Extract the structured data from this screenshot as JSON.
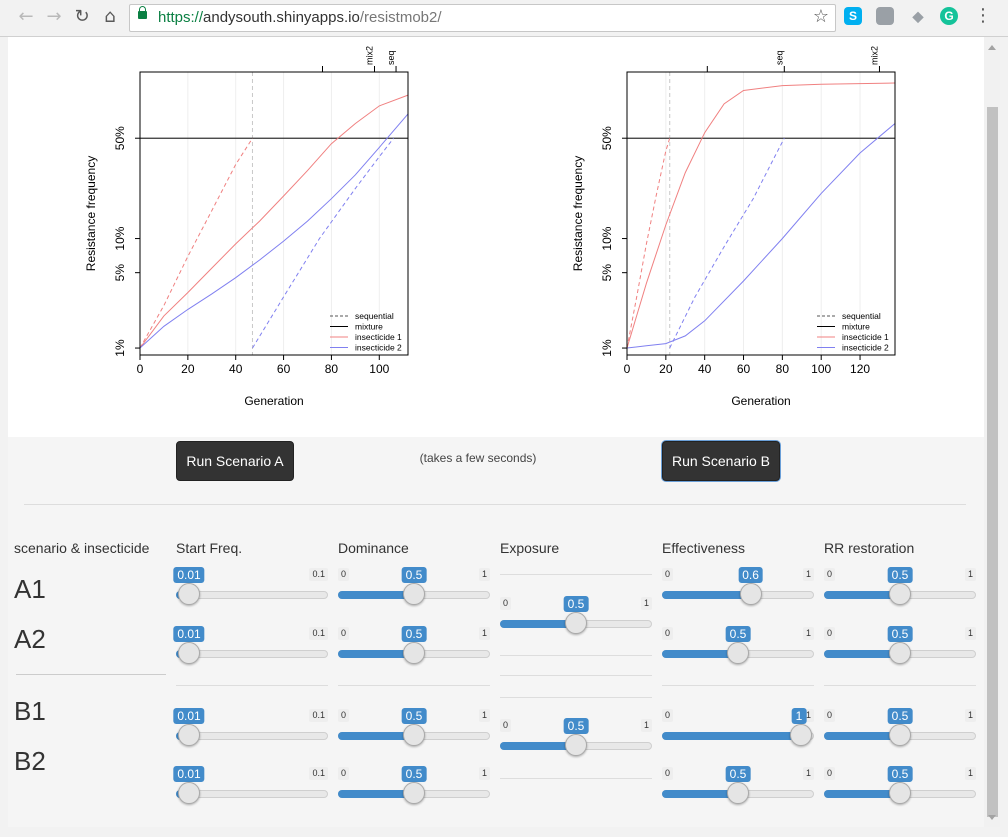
{
  "browser": {
    "url_scheme": "https://",
    "url_host": "andysouth.shinyapps.io",
    "url_path": "/resistmob2/",
    "extensions": [
      {
        "name": "skype-icon",
        "glyph": "S",
        "color": "#00aff0"
      },
      {
        "name": "image-extension-icon",
        "glyph": "",
        "color": "#9aa0a6"
      },
      {
        "name": "dropbox-icon",
        "glyph": "◆",
        "color": "#9aa0a6"
      },
      {
        "name": "grammarly-icon",
        "glyph": "G",
        "color": "#15c39a"
      }
    ]
  },
  "plots": [
    {
      "id": "a",
      "ylabel": "Resistance frequency",
      "xlabel": "Generation",
      "xticks": [
        0,
        20,
        40,
        60,
        80,
        100
      ],
      "xlim": [
        0,
        112
      ],
      "yticks": [
        "1%",
        "5%",
        "10%",
        "50%"
      ],
      "top_labels": [
        {
          "text": "mix2",
          "x": 98
        },
        {
          "text": "seq",
          "x": 107
        }
      ],
      "vline_x": 47,
      "legend": [
        "sequential",
        "mixture",
        "insecticide 1",
        "insecticide 2"
      ]
    },
    {
      "id": "b",
      "ylabel": "Resistance frequency",
      "xlabel": "Generation",
      "xticks": [
        0,
        20,
        40,
        60,
        80,
        100,
        120
      ],
      "xlim": [
        0,
        138
      ],
      "yticks": [
        "1%",
        "5%",
        "10%",
        "50%"
      ],
      "top_labels": [
        {
          "text": "seq",
          "x": 81
        },
        {
          "text": "mix2",
          "x": 130
        }
      ],
      "vline_x": 22,
      "legend": [
        "sequential",
        "mixture",
        "insecticide 1",
        "insecticide 2"
      ]
    }
  ],
  "chart_data": [
    {
      "type": "line",
      "title": "",
      "xlabel": "Generation",
      "ylabel": "Resistance frequency",
      "y_scale": "logit",
      "xlim": [
        0,
        112
      ],
      "yticks": [
        "1%",
        "5%",
        "10%",
        "50%"
      ],
      "legend_position": "bottom-right",
      "series": [
        {
          "name": "sequential",
          "color": "#f08080",
          "style": "dashed",
          "x": [
            0,
            10,
            20,
            30,
            40,
            47
          ],
          "y": [
            1,
            2.5,
            7,
            17,
            36,
            50
          ]
        },
        {
          "name": "sequential",
          "color": "#8080f0",
          "style": "dashed",
          "x": [
            47,
            60,
            75,
            90,
            100,
            106
          ],
          "y": [
            1,
            3,
            10,
            25,
            40,
            50
          ]
        },
        {
          "name": "insecticide 1",
          "color": "#f08080",
          "style": "solid",
          "x": [
            0,
            10,
            20,
            30,
            40,
            50,
            60,
            70,
            80,
            90,
            100,
            112
          ],
          "y": [
            1,
            2,
            3.3,
            5.5,
            9,
            14,
            22,
            33,
            47,
            58,
            67,
            72
          ]
        },
        {
          "name": "insecticide 2",
          "color": "#8080f0",
          "style": "solid",
          "x": [
            0,
            10,
            20,
            30,
            40,
            50,
            60,
            70,
            80,
            90,
            100,
            112
          ],
          "y": [
            1,
            1.6,
            2.3,
            3.2,
            4.5,
            6.5,
            9.5,
            14,
            21,
            31,
            45,
            63
          ]
        }
      ]
    },
    {
      "type": "line",
      "title": "",
      "xlabel": "Generation",
      "ylabel": "Resistance frequency",
      "y_scale": "logit",
      "xlim": [
        0,
        138
      ],
      "yticks": [
        "1%",
        "5%",
        "10%",
        "50%"
      ],
      "legend_position": "bottom-right",
      "series": [
        {
          "name": "sequential",
          "color": "#f08080",
          "style": "dashed",
          "x": [
            0,
            5,
            10,
            15,
            20,
            22
          ],
          "y": [
            1,
            3,
            9,
            22,
            43,
            50
          ]
        },
        {
          "name": "sequential",
          "color": "#8080f0",
          "style": "dashed",
          "x": [
            22,
            35,
            50,
            65,
            75,
            81
          ],
          "y": [
            1,
            3,
            8.5,
            21,
            38,
            50
          ]
        },
        {
          "name": "insecticide 1",
          "color": "#f08080",
          "style": "solid",
          "x": [
            0,
            10,
            20,
            30,
            40,
            50,
            60,
            80,
            100,
            138
          ],
          "y": [
            1,
            4,
            13,
            32,
            53,
            68,
            74,
            76,
            76.5,
            77
          ]
        },
        {
          "name": "insecticide 2",
          "color": "#8080f0",
          "style": "solid",
          "x": [
            0,
            10,
            20,
            30,
            40,
            60,
            80,
            100,
            120,
            138
          ],
          "y": [
            1,
            1.05,
            1.1,
            1.3,
            1.8,
            4.2,
            10,
            23,
            42,
            58
          ]
        }
      ]
    }
  ],
  "controls": {
    "run_a": "Run Scenario A",
    "run_b": "Run Scenario B",
    "note": "(takes a few seconds)",
    "headers": [
      "scenario & insecticide",
      "Start Freq.",
      "Dominance",
      "Exposure",
      "Effectiveness",
      "RR restoration"
    ],
    "row_labels": [
      "A1",
      "A2",
      "B1",
      "B2"
    ],
    "sliders": [
      {
        "name": "a1-start-freq-slider",
        "min": "0.01",
        "max": "0.1",
        "min_num": 0.01,
        "max_num": 0.1,
        "value_num": 0.01,
        "value": "0.01"
      },
      {
        "name": "a1-dominance-slider",
        "min": "0",
        "max": "1",
        "min_num": 0,
        "max_num": 1,
        "value_num": 0.5,
        "value": "0.5"
      },
      {
        "name": "a1-effectiveness-slider",
        "min": "0",
        "max": "1",
        "min_num": 0,
        "max_num": 1,
        "value_num": 0.6,
        "value": "0.6"
      },
      {
        "name": "a1-rr-restoration-slider",
        "min": "0",
        "max": "1",
        "min_num": 0,
        "max_num": 1,
        "value_num": 0.5,
        "value": "0.5"
      },
      {
        "name": "a-exposure-slider",
        "min": "0",
        "max": "1",
        "min_num": 0,
        "max_num": 1,
        "value_num": 0.5,
        "value": "0.5"
      },
      {
        "name": "a2-start-freq-slider",
        "min": "0.01",
        "max": "0.1",
        "min_num": 0.01,
        "max_num": 0.1,
        "value_num": 0.01,
        "value": "0.01"
      },
      {
        "name": "a2-dominance-slider",
        "min": "0",
        "max": "1",
        "min_num": 0,
        "max_num": 1,
        "value_num": 0.5,
        "value": "0.5"
      },
      {
        "name": "a2-effectiveness-slider",
        "min": "0",
        "max": "1",
        "min_num": 0,
        "max_num": 1,
        "value_num": 0.5,
        "value": "0.5"
      },
      {
        "name": "a2-rr-restoration-slider",
        "min": "0",
        "max": "1",
        "min_num": 0,
        "max_num": 1,
        "value_num": 0.5,
        "value": "0.5"
      },
      {
        "name": "b1-start-freq-slider",
        "min": "0.01",
        "max": "0.1",
        "min_num": 0.01,
        "max_num": 0.1,
        "value_num": 0.01,
        "value": "0.01"
      },
      {
        "name": "b1-dominance-slider",
        "min": "0",
        "max": "1",
        "min_num": 0,
        "max_num": 1,
        "value_num": 0.5,
        "value": "0.5"
      },
      {
        "name": "b1-effectiveness-slider",
        "min": "0",
        "max": "1",
        "min_num": 0,
        "max_num": 1,
        "value_num": 1,
        "value": "1"
      },
      {
        "name": "b1-rr-restoration-slider",
        "min": "0",
        "max": "1",
        "min_num": 0,
        "max_num": 1,
        "value_num": 0.5,
        "value": "0.5"
      },
      {
        "name": "b-exposure-slider",
        "min": "0",
        "max": "1",
        "min_num": 0,
        "max_num": 1,
        "value_num": 0.5,
        "value": "0.5"
      },
      {
        "name": "b2-start-freq-slider",
        "min": "0.01",
        "max": "0.1",
        "min_num": 0.01,
        "max_num": 0.1,
        "value_num": 0.01,
        "value": "0.01"
      },
      {
        "name": "b2-dominance-slider",
        "min": "0",
        "max": "1",
        "min_num": 0,
        "max_num": 1,
        "value_num": 0.5,
        "value": "0.5"
      },
      {
        "name": "b2-effectiveness-slider",
        "min": "0",
        "max": "1",
        "min_num": 0,
        "max_num": 1,
        "value_num": 0.5,
        "value": "0.5"
      },
      {
        "name": "b2-rr-restoration-slider",
        "min": "0",
        "max": "1",
        "min_num": 0,
        "max_num": 1,
        "value_num": 0.5,
        "value": "0.5"
      }
    ],
    "accent_color": "#428bca"
  }
}
